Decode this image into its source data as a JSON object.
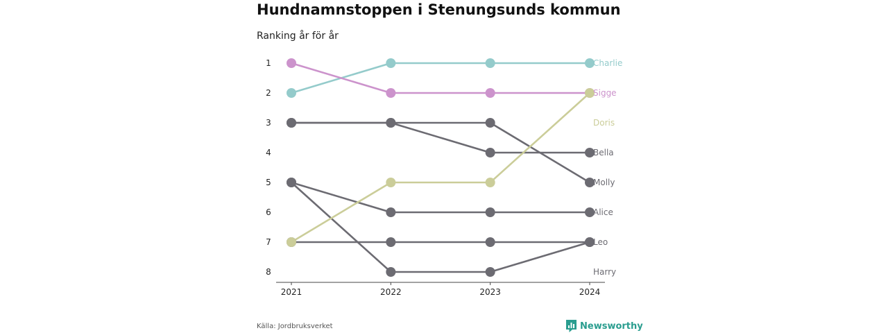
{
  "title": "Hundnamnstoppen i Stenungsunds kommun",
  "subtitle": "Ranking år för år",
  "source": "Källa: Jordbruksverket",
  "brand": {
    "name": "Newsworthy",
    "icon": "bar-chart-logo-icon"
  },
  "chart_data": {
    "type": "line",
    "title": "Hundnamnstoppen i Stenungsunds kommun",
    "subtitle": "Ranking år för år",
    "x": [
      "2021",
      "2022",
      "2023",
      "2024"
    ],
    "y_ticks": [
      "1",
      "2",
      "3",
      "4",
      "5",
      "6",
      "7",
      "8"
    ],
    "ylim": [
      1,
      8
    ],
    "y_reversed": true,
    "grid": false,
    "colors": {
      "Charlie": "#94cbcb",
      "Sigge": "#cc93cc",
      "Doris": "#cbcd99",
      "default": "#6c6b72"
    },
    "series": [
      {
        "name": "Charlie",
        "values": [
          2,
          1,
          1,
          1
        ],
        "label_rank": 1
      },
      {
        "name": "Sigge",
        "values": [
          1,
          2,
          2,
          2
        ],
        "label_rank": 2
      },
      {
        "name": "Doris",
        "values": [
          7,
          5,
          5,
          2
        ],
        "label_rank": 3
      },
      {
        "name": "Bella",
        "values": [
          3,
          3,
          4,
          4
        ],
        "label_rank": 4
      },
      {
        "name": "Molly",
        "values": [
          3,
          3,
          3,
          5
        ],
        "label_rank": 5
      },
      {
        "name": "Alice",
        "values": [
          5,
          6,
          6,
          6
        ],
        "label_rank": 6
      },
      {
        "name": "Leo",
        "values": [
          7,
          7,
          7,
          7
        ],
        "label_rank": 7
      },
      {
        "name": "Harry",
        "values": [
          5,
          8,
          8,
          7
        ],
        "label_rank": 8
      }
    ]
  }
}
